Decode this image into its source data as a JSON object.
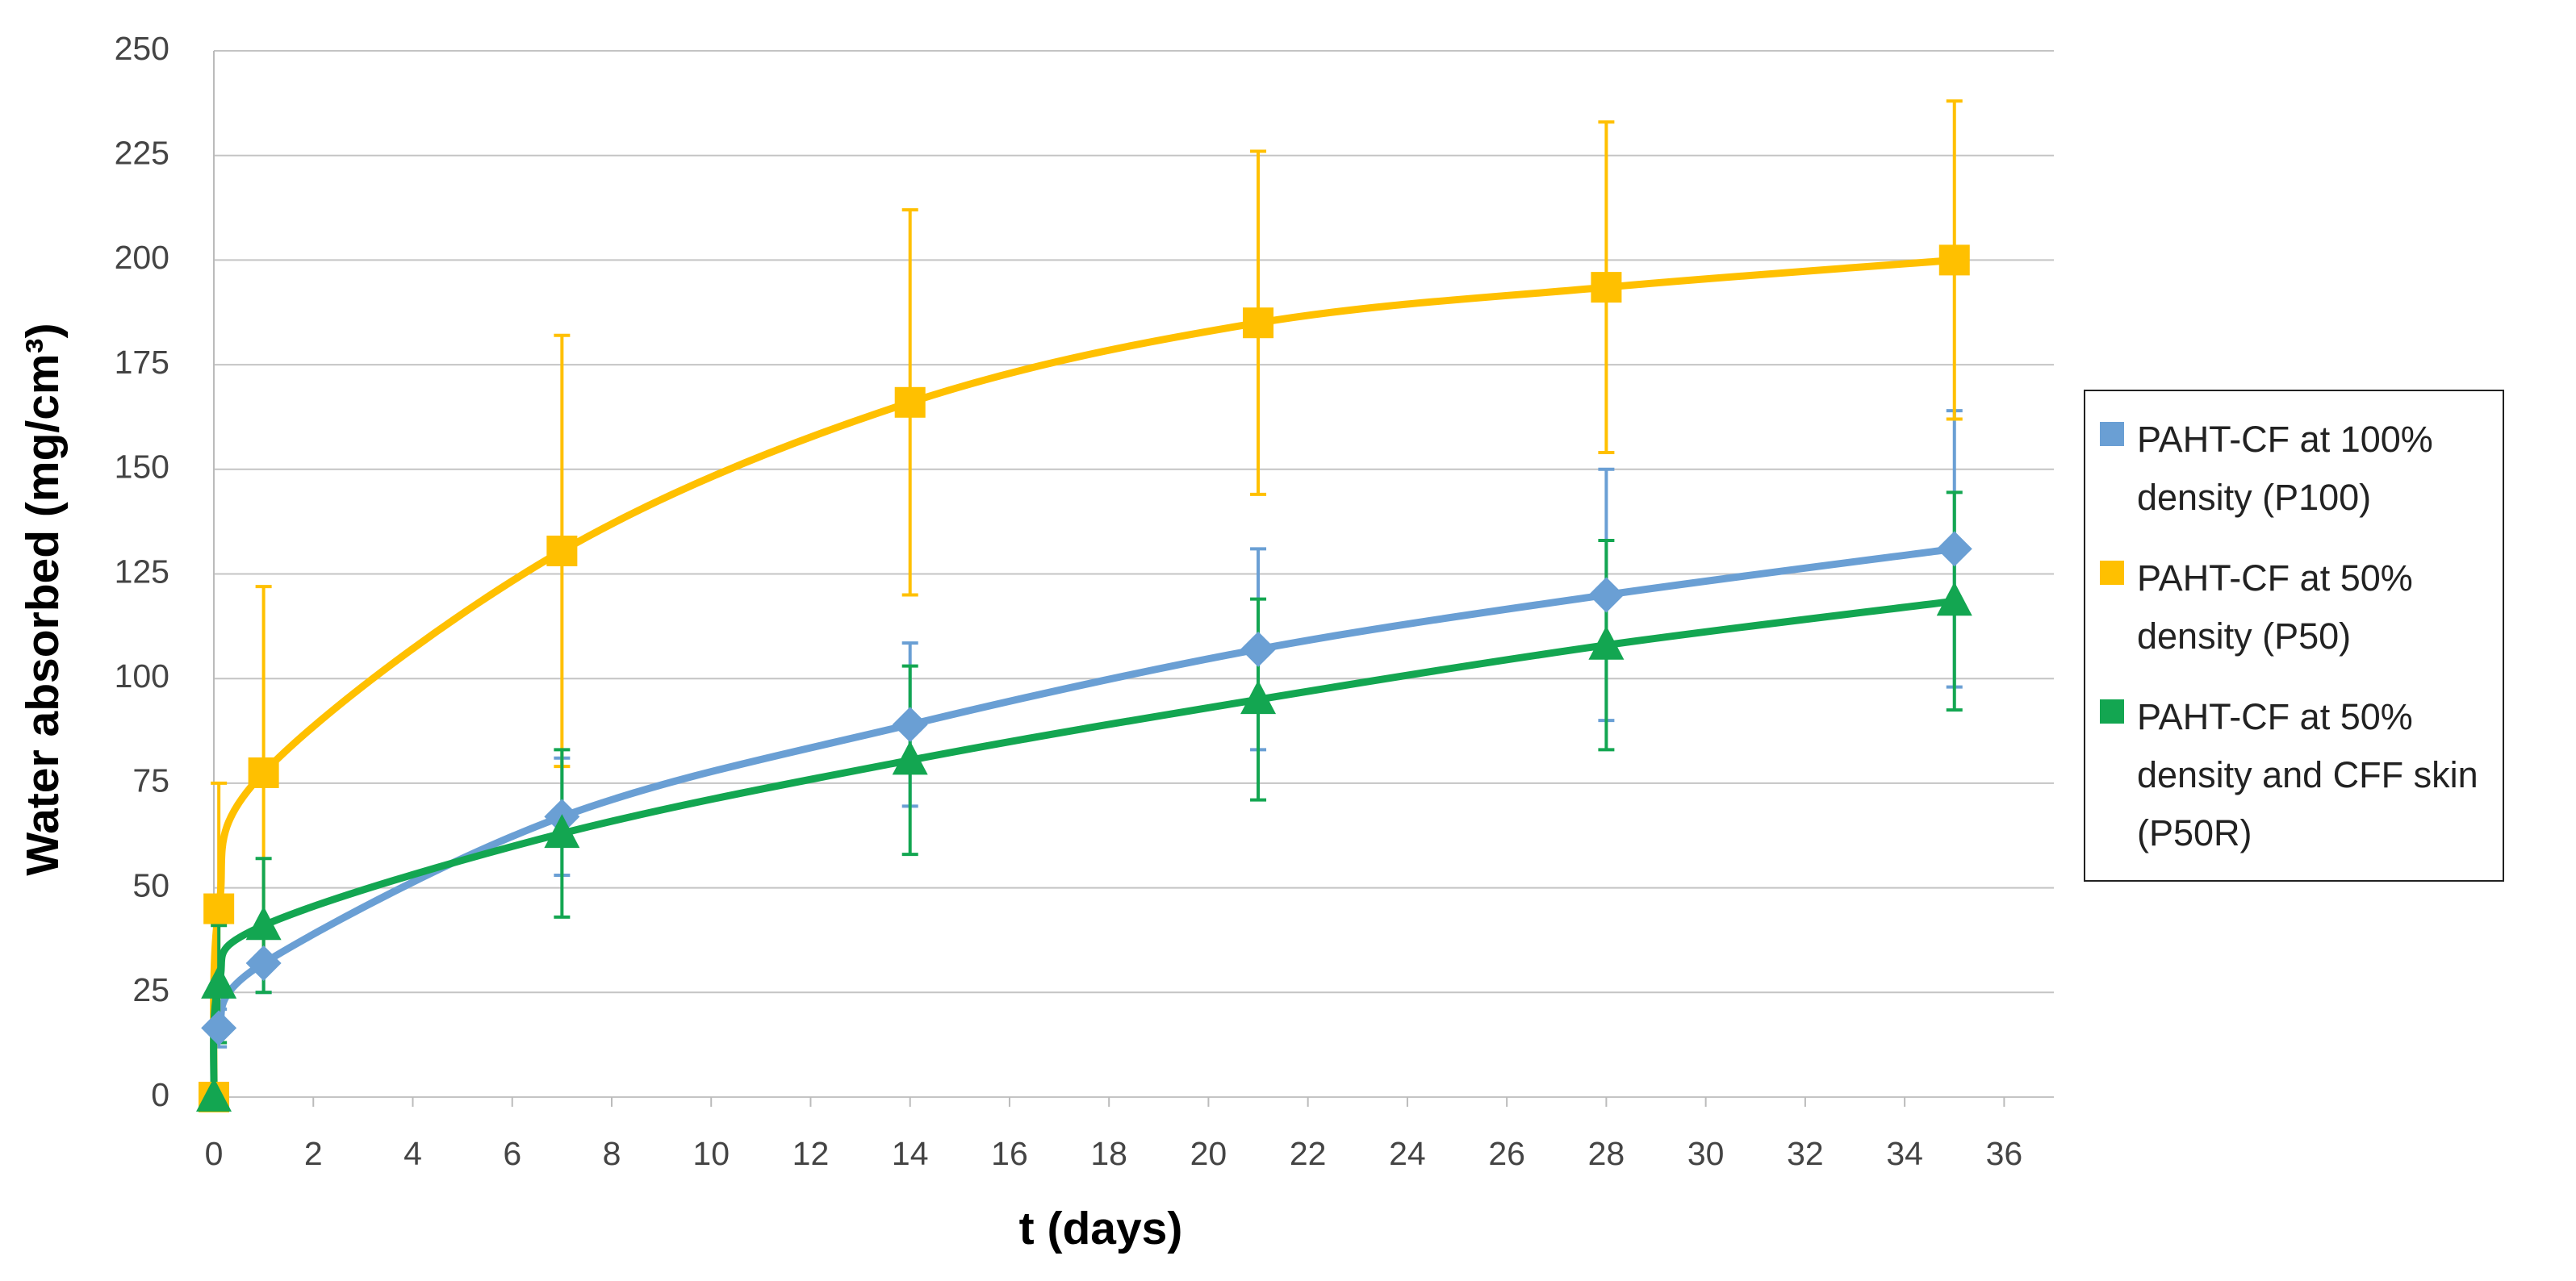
{
  "chart_data": {
    "type": "line",
    "x_label": "t (days)",
    "y_label": "Water absorbed (mg/cm³)",
    "xlim": [
      0,
      37
    ],
    "xticks": [
      0,
      2,
      4,
      6,
      8,
      10,
      12,
      14,
      16,
      18,
      20,
      22,
      24,
      26,
      28,
      30,
      32,
      34,
      36
    ],
    "ylim": [
      0,
      250
    ],
    "yticks": [
      0,
      25,
      50,
      75,
      100,
      125,
      150,
      175,
      200,
      225,
      250
    ],
    "grid": true,
    "legend": "right",
    "series": [
      {
        "name": "PAHT-CF at 100% density (P100)",
        "color": "#6a9fd4",
        "marker": "diamond",
        "x": [
          0.1,
          1,
          7,
          14,
          21,
          28,
          35
        ],
        "values": [
          16.5,
          32,
          67,
          89,
          107,
          120,
          131
        ],
        "errors": [
          4.5,
          7,
          14,
          19.5,
          24,
          30,
          33
        ]
      },
      {
        "name": "PAHT-CF at 50% density (P50)",
        "color": "#ffc000",
        "marker": "square",
        "x": [
          0,
          0.1,
          1,
          7,
          14,
          21,
          28,
          35
        ],
        "values": [
          0,
          45,
          77.5,
          130.5,
          166,
          185,
          193.5,
          200
        ],
        "errors": [
          0,
          30,
          44.5,
          51.5,
          46,
          41,
          39.5,
          38
        ]
      },
      {
        "name": "PAHT-CF at 50% density and CFF skin (P50R)",
        "color": "#13a651",
        "marker": "triangle",
        "x": [
          0,
          0.1,
          1,
          7,
          14,
          21,
          28,
          35
        ],
        "values": [
          0,
          27,
          41,
          63,
          80.5,
          95,
          108,
          118.5
        ],
        "errors": [
          0,
          14,
          16,
          20,
          22.5,
          24,
          25,
          26
        ]
      }
    ]
  }
}
